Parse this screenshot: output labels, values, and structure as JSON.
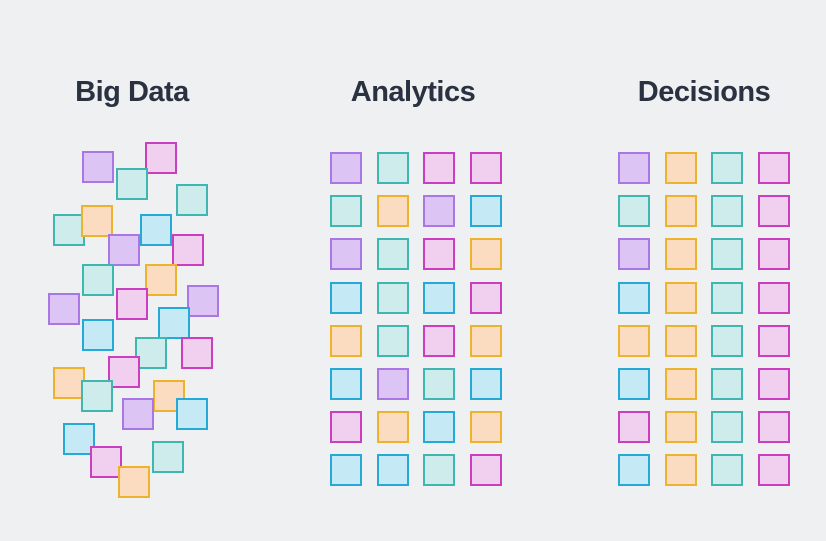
{
  "columns": [
    {
      "title": "Big Data",
      "layout": "scattered",
      "squares": [
        "purple",
        "magenta",
        "teal",
        "teal",
        "teal",
        "orange",
        "purple",
        "blue",
        "magenta",
        "teal",
        "orange",
        "purple",
        "magenta",
        "purple",
        "blue",
        "blue",
        "teal",
        "magenta",
        "magenta",
        "orange",
        "teal",
        "orange",
        "purple",
        "blue",
        "blue",
        "magenta",
        "teal",
        "orange"
      ]
    },
    {
      "title": "Analytics",
      "layout": "grid",
      "rows": [
        [
          "purple",
          "teal",
          "magenta",
          "magenta"
        ],
        [
          "teal",
          "orange",
          "purple",
          "blue"
        ],
        [
          "purple",
          "teal",
          "magenta",
          "orange"
        ],
        [
          "blue",
          "teal",
          "blue",
          "magenta"
        ],
        [
          "orange",
          "teal",
          "magenta",
          "orange"
        ],
        [
          "blue",
          "purple",
          "teal",
          "blue"
        ],
        [
          "magenta",
          "orange",
          "blue",
          "orange"
        ],
        [
          "blue",
          "blue",
          "teal",
          "magenta"
        ]
      ]
    },
    {
      "title": "Decisions",
      "layout": "grid",
      "rows": [
        [
          "purple",
          "orange",
          "teal",
          "magenta"
        ],
        [
          "teal",
          "orange",
          "teal",
          "magenta"
        ],
        [
          "purple",
          "orange",
          "teal",
          "magenta"
        ],
        [
          "blue",
          "orange",
          "teal",
          "magenta"
        ],
        [
          "orange",
          "orange",
          "teal",
          "magenta"
        ],
        [
          "blue",
          "orange",
          "teal",
          "magenta"
        ],
        [
          "magenta",
          "orange",
          "teal",
          "magenta"
        ],
        [
          "blue",
          "orange",
          "teal",
          "magenta"
        ]
      ]
    }
  ],
  "colors": {
    "purple": {
      "fill": "#dcc4f4",
      "stroke": "#a877e3"
    },
    "teal": {
      "fill": "#cdeceb",
      "stroke": "#3fb6b0"
    },
    "magenta": {
      "fill": "#f1cfee",
      "stroke": "#c93fbf"
    },
    "orange": {
      "fill": "#fbdcc0",
      "stroke": "#eeb32c"
    },
    "blue": {
      "fill": "#c5eaf6",
      "stroke": "#25a9d6"
    },
    "title_text": "#2a3140",
    "background": "#eff0f2"
  }
}
